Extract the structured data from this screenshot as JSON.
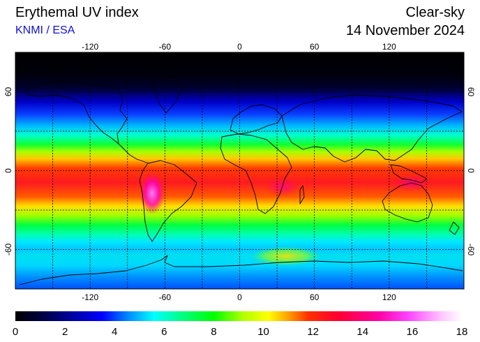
{
  "header": {
    "title": "Erythemal UV index",
    "source": "KNMI / ESA",
    "mode": "Clear-sky",
    "date": "14 November 2024"
  },
  "map": {
    "projection": "equirectangular",
    "lon_range": [
      -180,
      180
    ],
    "lat_range": [
      -90,
      90
    ],
    "lon_ticks": [
      -120,
      -60,
      0,
      60,
      120
    ],
    "lon_tick_labels": [
      "-120",
      "-60",
      "0",
      "60",
      "120"
    ],
    "lat_ticks": [
      60,
      0,
      -60
    ],
    "lat_tick_labels": [
      "60",
      "0",
      "-60"
    ],
    "gridlines": "dashed",
    "grid_lon_step": 30,
    "grid_lat_step": 30
  },
  "colorbar": {
    "min": 0,
    "max": 18,
    "tick_labels": [
      "0",
      "2",
      "4",
      "6",
      "8",
      "10",
      "12",
      "14",
      "16",
      "18"
    ],
    "colors": [
      "#000000",
      "#00004a",
      "#0000ff",
      "#0090ff",
      "#00ffff",
      "#00ff7a",
      "#00ff00",
      "#b4ff00",
      "#ffff00",
      "#ffa000",
      "#ff3000",
      "#ff0030",
      "#ff00a0",
      "#ff40ff",
      "#ffc8ff",
      "#ffffff"
    ],
    "colors_at": [
      0,
      1.2,
      3.5,
      4.6,
      5.6,
      6.8,
      8.0,
      9.2,
      10.2,
      11.0,
      11.8,
      13.0,
      14.6,
      15.8,
      17.2,
      18
    ]
  }
}
